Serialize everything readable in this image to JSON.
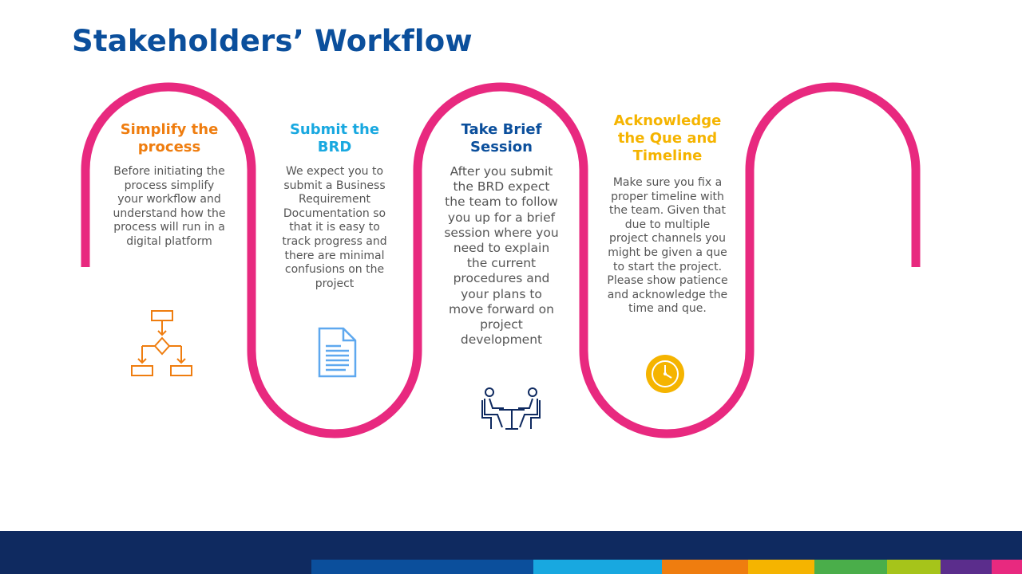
{
  "page": {
    "title": "Stakeholders’ Workflow"
  },
  "steps": [
    {
      "heading": "Simplify the process",
      "body": "Before initiating the process simplify your workflow and understand how the process will run in a digital platform",
      "color": "#ef7d0f",
      "icon": "flowchart-icon"
    },
    {
      "heading": "Submit the BRD",
      "body": "We expect you to submit a Business Requirement Documentation so that it is easy to track progress and there are minimal confusions on the project",
      "color": "#18a8e0",
      "icon": "document-icon"
    },
    {
      "heading": "Take Brief Session",
      "body": "After you submit the BRD expect the team to follow you up for a brief session where you need to explain the current procedures and your plans to move forward  on project development",
      "color": "#0b4f9c",
      "icon": "meeting-icon"
    },
    {
      "heading": "Acknowledge the Que and Timeline",
      "body": "Make sure you fix a proper timeline with the team. Given that due to multiple project channels you might be given a que to start the project. Please show patience and acknowledge the time and que.",
      "color": "#f5b400",
      "icon": "clock-icon"
    }
  ],
  "colors": {
    "wave": "#e8297f",
    "footer": "#0f2a60",
    "stripes": [
      "#0b4f9c",
      "#18a8e0",
      "#ef7d0f",
      "#f5b400",
      "#4aae4a",
      "#a6c41a",
      "#5b2d8c",
      "#e8297f"
    ]
  }
}
